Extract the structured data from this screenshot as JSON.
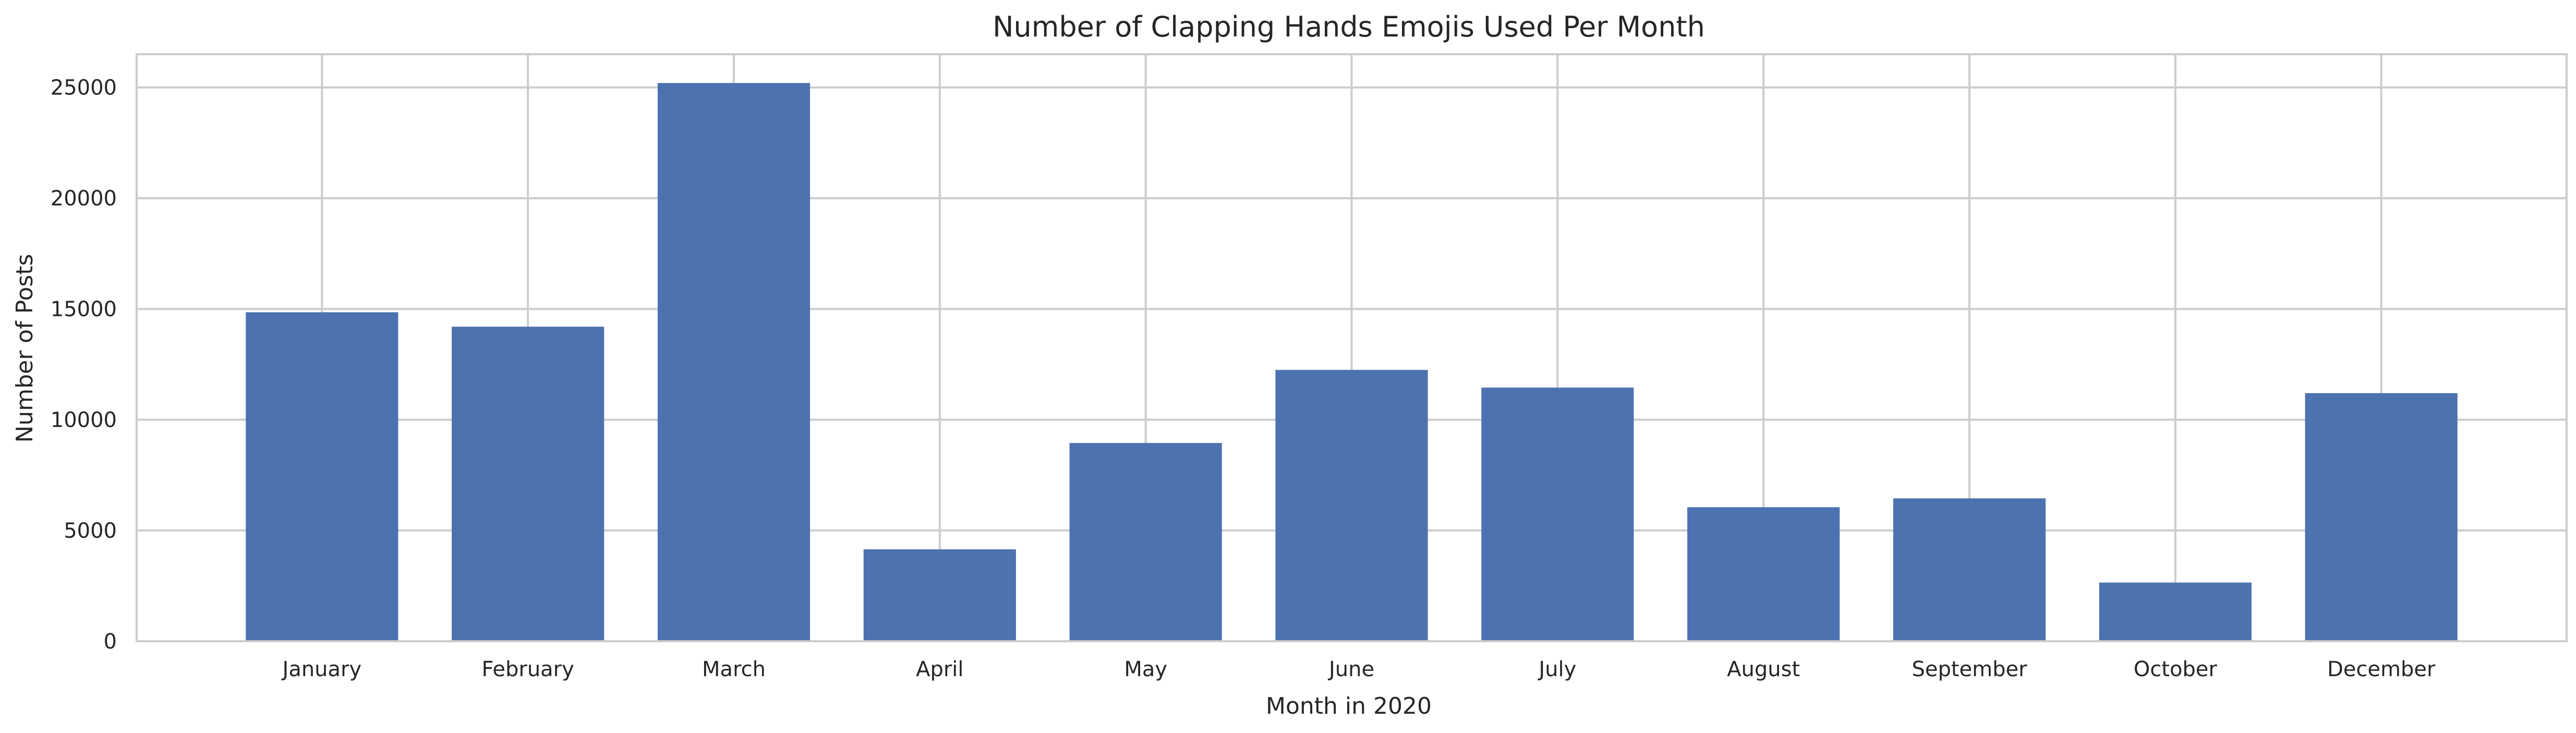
{
  "chart_data": {
    "type": "bar",
    "title": "Number of Clapping Hands Emojis Used Per Month",
    "xlabel": "Month in 2020",
    "ylabel": "Number of Posts",
    "categories": [
      "January",
      "February",
      "March",
      "April",
      "May",
      "June",
      "July",
      "August",
      "September",
      "October",
      "December"
    ],
    "values": [
      14850,
      14200,
      25200,
      4150,
      8950,
      12250,
      11450,
      6050,
      6450,
      2650,
      11200
    ],
    "ylim": [
      0,
      26500
    ],
    "yticks": [
      0,
      5000,
      10000,
      15000,
      20000,
      25000
    ],
    "grid": true,
    "colors": {
      "bar": "#4c72b0",
      "grid": "#cccccc",
      "text": "#262626"
    }
  }
}
